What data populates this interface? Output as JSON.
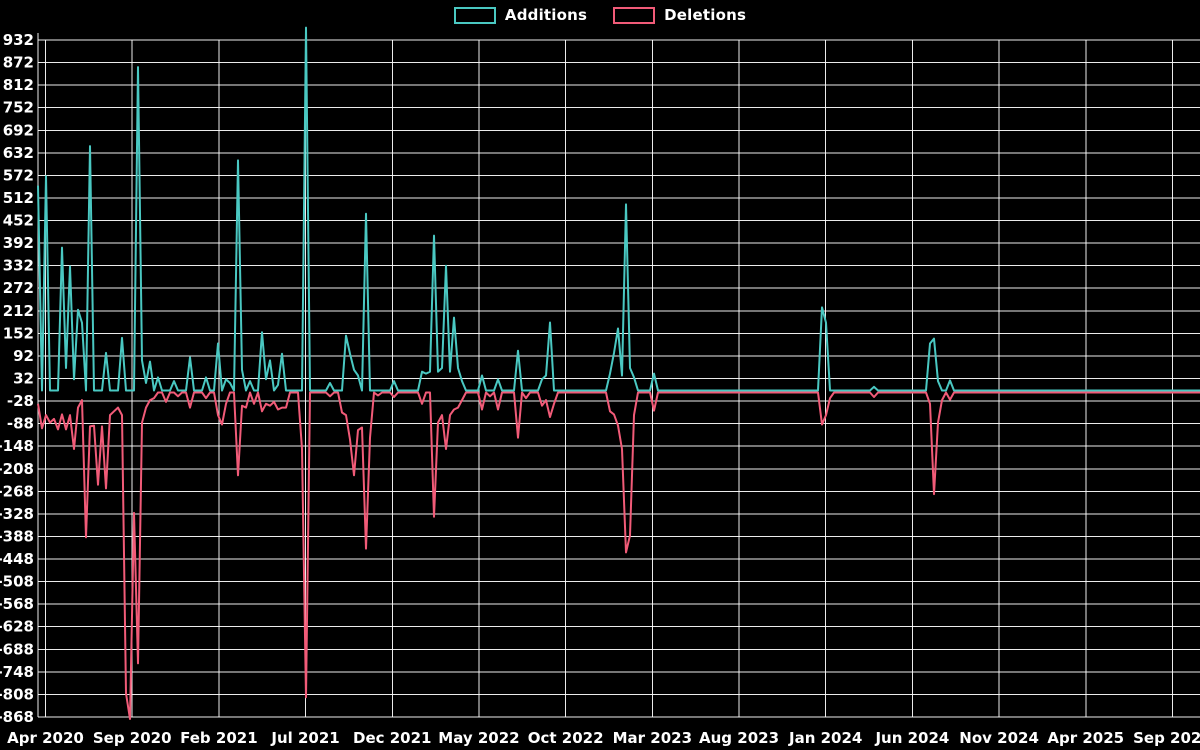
{
  "legend": {
    "additions_label": "Additions",
    "deletions_label": "Deletions"
  },
  "colors": {
    "background": "#000000",
    "grid": "#ffffff",
    "text": "#ffffff",
    "additions": "#4ac8c2",
    "deletions": "#f15b78"
  },
  "chart_data": {
    "type": "line",
    "title": "",
    "xlabel": "",
    "ylabel": "",
    "legend_position": "top-center",
    "grid": true,
    "ylim": [
      -868,
      966
    ],
    "y_tick_step": 60,
    "y_ticks": [
      932,
      872,
      812,
      752,
      692,
      632,
      572,
      512,
      452,
      392,
      332,
      272,
      212,
      152,
      92,
      32,
      -28,
      -88,
      -148,
      -208,
      -268,
      -328,
      -388,
      -448,
      -508,
      -568,
      -628,
      -688,
      -748,
      -808,
      -868
    ],
    "x_ticks": [
      "Apr 2020",
      "Sep 2020",
      "Feb 2021",
      "Jul 2021",
      "Dec 2021",
      "May 2022",
      "Oct 2022",
      "Mar 2023",
      "Aug 2023",
      "Jan 2024",
      "Jun 2024",
      "Nov 2024",
      "Apr 2025",
      "Sep 2025"
    ],
    "x_unit": "week",
    "weeks_total": 291,
    "series": [
      {
        "name": "Additions",
        "color": "#4ac8c2",
        "baseline": 0,
        "points_by_week": {
          "0": 545,
          "2": 570,
          "6": 380,
          "7": 60,
          "8": 330,
          "9": 30,
          "10": 215,
          "11": 180,
          "13": 650,
          "17": 100,
          "21": 140,
          "25": 860,
          "26": 80,
          "27": 20,
          "28": 77,
          "30": 35,
          "34": 25,
          "38": 88,
          "42": 35,
          "45": 125,
          "47": 30,
          "48": 20,
          "50": 612,
          "51": 55,
          "53": 25,
          "56": 155,
          "57": 30,
          "58": 80,
          "60": 15,
          "61": 98,
          "67": 965,
          "73": 20,
          "77": 146,
          "78": 98,
          "79": 55,
          "80": 40,
          "82": 470,
          "89": 25,
          "96": 50,
          "97": 45,
          "98": 50,
          "99": 412,
          "100": 50,
          "101": 60,
          "102": 332,
          "103": 50,
          "104": 194,
          "105": 60,
          "106": 25,
          "111": 40,
          "115": 30,
          "120": 106,
          "126": 30,
          "127": 40,
          "128": 181,
          "143": 45,
          "144": 100,
          "145": 165,
          "146": 40,
          "147": 495,
          "148": 60,
          "149": 35,
          "154": 45,
          "196": 221,
          "197": 180,
          "209": 10,
          "223": 125,
          "224": 138,
          "225": 25,
          "228": 27
        }
      },
      {
        "name": "Deletions",
        "color": "#f15b78",
        "baseline": 0,
        "points_by_week": {
          "0": -30,
          "1": -95,
          "2": -60,
          "3": -80,
          "4": -70,
          "5": -98,
          "6": -58,
          "7": -98,
          "8": -60,
          "9": -150,
          "10": -40,
          "11": -20,
          "12": -385,
          "13": -90,
          "14": -88,
          "15": -245,
          "16": -90,
          "17": -255,
          "18": -60,
          "19": -50,
          "20": -40,
          "21": -60,
          "22": -800,
          "23": -868,
          "24": -320,
          "25": -720,
          "26": -80,
          "27": -40,
          "28": -20,
          "29": -15,
          "32": -25,
          "35": -10,
          "38": -40,
          "42": -15,
          "45": -60,
          "46": -85,
          "47": -30,
          "50": -220,
          "51": -35,
          "52": -40,
          "54": -30,
          "56": -50,
          "57": -30,
          "58": -35,
          "59": -25,
          "60": -45,
          "61": -40,
          "62": -40,
          "66": -150,
          "67": -810,
          "73": -10,
          "76": -53,
          "77": -60,
          "78": -125,
          "79": -220,
          "80": -100,
          "81": -93,
          "82": -415,
          "83": -120,
          "85": -8,
          "89": -12,
          "96": -30,
          "99": -330,
          "100": -80,
          "101": -60,
          "102": -150,
          "103": -60,
          "104": -45,
          "105": -40,
          "106": -20,
          "111": -45,
          "113": -10,
          "115": -45,
          "120": -120,
          "122": -15,
          "126": -35,
          "127": -20,
          "128": -65,
          "129": -30,
          "143": -50,
          "144": -58,
          "145": -88,
          "146": -150,
          "147": -425,
          "148": -380,
          "149": -60,
          "154": -48,
          "196": -85,
          "197": -60,
          "198": -15,
          "209": -12,
          "223": -30,
          "224": -270,
          "225": -80,
          "226": -20,
          "228": -19
        }
      }
    ]
  }
}
